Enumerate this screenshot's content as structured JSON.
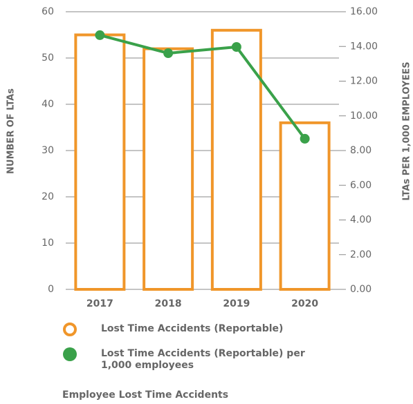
{
  "chart_data": {
    "type": "bar",
    "categories": [
      "2017",
      "2018",
      "2019",
      "2020"
    ],
    "series": [
      {
        "name": "Lost Time Accidents (Reportable)",
        "color": "#f0962a",
        "type": "bar",
        "axis": "y",
        "values": [
          55,
          52,
          56,
          36
        ]
      },
      {
        "name": "Lost Time Accidents (Reportable) per 1,000 employees",
        "color": "#3aa14a",
        "type": "line",
        "axis": "y2",
        "values": [
          14.65,
          13.61,
          13.97,
          8.68
        ]
      }
    ],
    "ylabel": "NUMBER OF LTAs",
    "y2label": "LTAs  PER 1,000 EMPLOYEES",
    "ylim": [
      0,
      60
    ],
    "yticks": [
      0,
      10,
      20,
      30,
      40,
      50,
      60
    ],
    "y2lim": [
      0,
      16
    ],
    "y2ticks": [
      {
        "value": 0,
        "label": "0.00"
      },
      {
        "value": 2,
        "label": "2.00"
      },
      {
        "value": 4,
        "label": "4.00"
      },
      {
        "value": 6,
        "label": "6.00"
      },
      {
        "value": 8,
        "label": "8.00"
      },
      {
        "value": 10,
        "label": "10.00"
      },
      {
        "value": 12,
        "label": "12.00"
      },
      {
        "value": 14,
        "label": "14.00"
      },
      {
        "value": 16,
        "label": "16.00"
      }
    ],
    "grid": true,
    "caption": "Employee Lost Time Accidents"
  }
}
